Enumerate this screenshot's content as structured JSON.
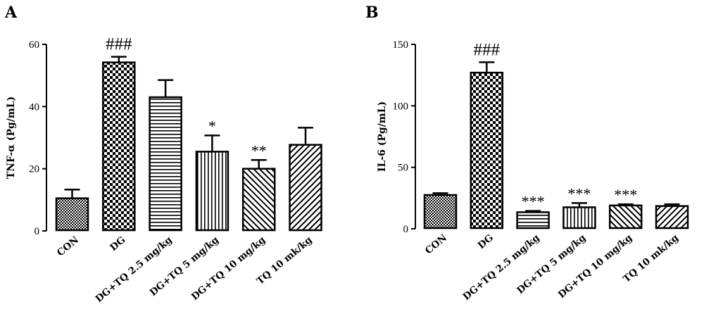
{
  "chart_data": [
    {
      "type": "bar",
      "panel": "A",
      "ylabel": "TNF-α (Pg/mL)",
      "ylim": [
        0,
        60
      ],
      "yticks": [
        "0",
        "20",
        "40",
        "60"
      ],
      "categories": [
        "CON",
        "DG",
        "DG+TQ 2.5 mg/kg",
        "DG+TQ 5 mg/kg",
        "DG+TQ 10 mg/kg",
        "TQ 10 mk/kg"
      ],
      "values": [
        10.5,
        54.2,
        43.0,
        25.5,
        20.0,
        27.7
      ],
      "errors": [
        2.8,
        1.8,
        5.5,
        5.2,
        2.8,
        5.5
      ],
      "annotations": [
        "",
        "###",
        "",
        "*",
        "**",
        ""
      ],
      "patterns": [
        "fine-check",
        "checker",
        "horizontal",
        "vertical",
        "diagonal-right",
        "diagonal-left"
      ]
    },
    {
      "type": "bar",
      "panel": "B",
      "ylabel": "IL-6 (Pg/mL)",
      "ylim": [
        0,
        150
      ],
      "yticks": [
        "0",
        "50",
        "100",
        "150"
      ],
      "categories": [
        "CON",
        "DG",
        "DG+TQ 2.5 mg/kg",
        "DG+TQ 5 mg/kg",
        "DG+TQ 10 mg/kg",
        "TQ 10 mk/kg"
      ],
      "values": [
        27.5,
        127.0,
        13.5,
        17.5,
        19.0,
        18.5
      ],
      "errors": [
        1.5,
        8.5,
        1.0,
        3.5,
        1.0,
        1.5
      ],
      "annotations": [
        "",
        "###",
        "***",
        "***",
        "***",
        ""
      ],
      "patterns": [
        "fine-check",
        "checker",
        "horizontal",
        "vertical",
        "diagonal-right",
        "diagonal-left"
      ]
    }
  ]
}
